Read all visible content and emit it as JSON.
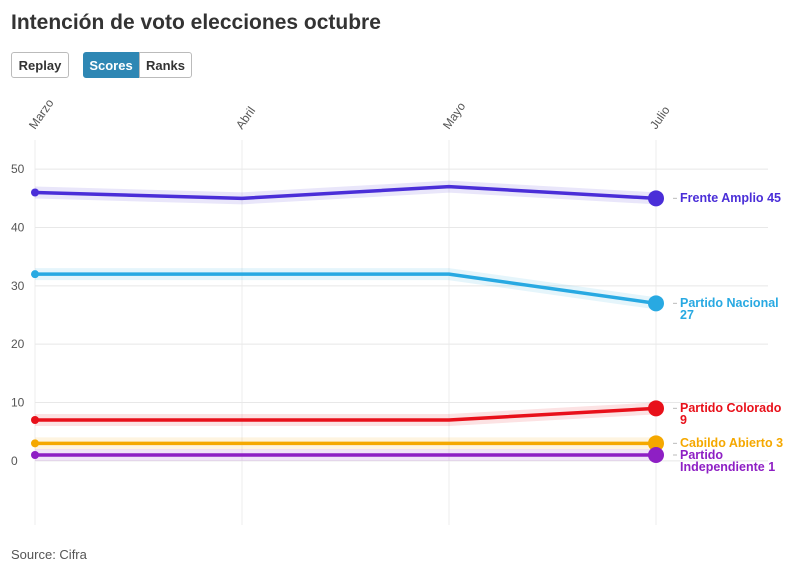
{
  "chart_data": {
    "type": "line",
    "title": "Intención de voto elecciones octubre",
    "controls": [
      "Replay",
      "Scores",
      "Ranks"
    ],
    "categories": [
      "Marzo",
      "Abril",
      "Mayo",
      "Julio"
    ],
    "series": [
      {
        "name": "Frente Amplio",
        "color": "#4a2ed8",
        "values": [
          46,
          45,
          47,
          45
        ]
      },
      {
        "name": "Partido Nacional",
        "color": "#28a9e2",
        "values": [
          32,
          32,
          32,
          27
        ]
      },
      {
        "name": "Partido Colorado",
        "color": "#e8101a",
        "values": [
          7,
          7,
          7,
          9
        ]
      },
      {
        "name": "Cabildo Abierto",
        "color": "#f5a800",
        "values": [
          3,
          3,
          3,
          3
        ]
      },
      {
        "name": "Partido Independiente",
        "color": "#8e1fc4",
        "values": [
          1,
          1,
          1,
          1
        ]
      }
    ],
    "ylim": [
      -11,
      55
    ],
    "yticks": [
      0,
      10,
      20,
      30,
      40,
      50
    ],
    "grid": true,
    "source": "Source: Cifra"
  }
}
